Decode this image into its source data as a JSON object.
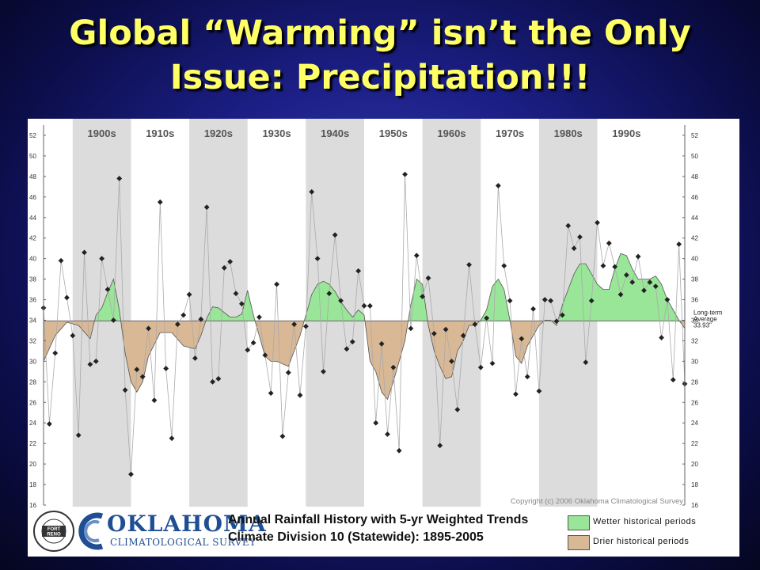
{
  "slide": {
    "title_line1": "Global “Warming” isn’t the Only",
    "title_line2": "Issue:  Precipitation!!!"
  },
  "footer": {
    "logo_left_text": "GRAZINGLANDS RESEARCH LAB",
    "logo_left_center": "FORT RENO",
    "org_name": "OKLAHOMA",
    "org_sub": "CLIMATOLOGICAL SURVEY",
    "chart_title": "Annual Rainfall History with 5-yr Weighted Trends",
    "chart_subtitle": "Climate Division 10 (Statewide): 1895-2005",
    "legend_wet": "Wetter historical periods",
    "legend_dry": "Drier historical periods"
  },
  "colors": {
    "wet": "#99e699",
    "dry": "#d9b896",
    "band": "#dcdcdc",
    "points": "#222222"
  },
  "chart_data": {
    "type": "line",
    "copyright": "Copyright  (c) 2006 Oklahoma Climatological Survey",
    "decades": [
      "1900s",
      "1910s",
      "1920s",
      "1930s",
      "1940s",
      "1950s",
      "1960s",
      "1970s",
      "1980s",
      "1990s"
    ],
    "ylim": [
      16,
      53
    ],
    "yticks": [
      16,
      18,
      20,
      22,
      24,
      26,
      28,
      30,
      32,
      34,
      36,
      38,
      40,
      42,
      44,
      46,
      48,
      50,
      52
    ],
    "xlim": [
      1895,
      2005
    ],
    "average": 33.93,
    "average_label": [
      "Long-term",
      "Average",
      "33.93\""
    ],
    "annual": {
      "x": [
        1895,
        1896,
        1897,
        1898,
        1899,
        1900,
        1901,
        1902,
        1903,
        1904,
        1905,
        1906,
        1907,
        1908,
        1909,
        1910,
        1911,
        1912,
        1913,
        1914,
        1915,
        1916,
        1917,
        1918,
        1919,
        1920,
        1921,
        1922,
        1923,
        1924,
        1925,
        1926,
        1927,
        1928,
        1929,
        1930,
        1931,
        1932,
        1933,
        1934,
        1935,
        1936,
        1937,
        1938,
        1939,
        1940,
        1941,
        1942,
        1943,
        1944,
        1945,
        1946,
        1947,
        1948,
        1949,
        1950,
        1951,
        1952,
        1953,
        1954,
        1955,
        1956,
        1957,
        1958,
        1959,
        1960,
        1961,
        1962,
        1963,
        1964,
        1965,
        1966,
        1967,
        1968,
        1969,
        1970,
        1971,
        1972,
        1973,
        1974,
        1975,
        1976,
        1977,
        1978,
        1979,
        1980,
        1981,
        1982,
        1983,
        1984,
        1985,
        1986,
        1987,
        1988,
        1989,
        1990,
        1991,
        1992,
        1993,
        1994,
        1995,
        1996,
        1997,
        1998,
        1999,
        2000,
        2001,
        2002,
        2003,
        2004,
        2005
      ],
      "y": [
        35.2,
        23.9,
        30.8,
        39.8,
        36.2,
        32.5,
        22.8,
        40.6,
        29.7,
        30.0,
        40.0,
        37.0,
        34.0,
        47.8,
        27.2,
        19.0,
        29.2,
        28.5,
        33.2,
        26.2,
        45.5,
        29.3,
        22.5,
        33.6,
        34.5,
        36.5,
        30.3,
        34.1,
        45.0,
        28.0,
        28.3,
        39.1,
        39.7,
        36.6,
        35.6,
        31.1,
        31.8,
        34.3,
        30.6,
        26.9,
        37.5,
        22.7,
        28.9,
        33.6,
        26.7,
        33.4,
        46.5,
        40.0,
        29.0,
        36.6,
        42.3,
        35.9,
        31.2,
        31.9,
        38.8,
        35.4,
        35.4,
        24.0,
        31.7,
        22.9,
        29.4,
        21.3,
        48.2,
        33.2,
        40.3,
        36.3,
        38.1,
        32.7,
        21.8,
        33.1,
        30.0,
        25.3,
        32.5,
        39.4,
        33.6,
        29.4,
        34.2,
        29.8,
        47.1,
        39.3,
        35.9,
        26.8,
        32.2,
        28.5,
        35.1,
        27.1,
        36.0,
        35.9,
        33.9,
        34.5,
        43.2,
        41.0,
        42.1,
        29.9,
        35.9,
        43.5,
        39.3,
        41.5,
        39.2,
        36.5,
        38.4,
        37.7,
        40.2,
        36.9,
        37.7,
        37.3,
        32.3,
        36.0,
        28.2,
        41.4,
        27.8
      ]
    },
    "trend": {
      "x": [
        1895,
        1897,
        1899,
        1901,
        1903,
        1904,
        1905,
        1906,
        1907,
        1908,
        1909,
        1910,
        1911,
        1912,
        1913,
        1915,
        1917,
        1919,
        1921,
        1922,
        1923,
        1924,
        1925,
        1927,
        1928,
        1929,
        1930,
        1931,
        1933,
        1934,
        1935,
        1937,
        1938,
        1939,
        1940,
        1941,
        1942,
        1943,
        1944,
        1945,
        1946,
        1947,
        1948,
        1949,
        1950,
        1951,
        1952,
        1953,
        1954,
        1955,
        1956,
        1957,
        1958,
        1959,
        1960,
        1961,
        1962,
        1963,
        1964,
        1965,
        1966,
        1967,
        1968,
        1969,
        1970,
        1971,
        1972,
        1973,
        1974,
        1975,
        1976,
        1977,
        1978,
        1979,
        1980,
        1981,
        1982,
        1983,
        1984,
        1985,
        1986,
        1987,
        1988,
        1989,
        1990,
        1991,
        1992,
        1993,
        1994,
        1995,
        1996,
        1997,
        1998,
        1999,
        2000,
        2001,
        2002,
        2003,
        2004,
        2005
      ],
      "y": [
        30.0,
        32.5,
        33.8,
        33.5,
        32.2,
        34.5,
        35.2,
        36.7,
        38.0,
        35.0,
        30.8,
        28.0,
        27.0,
        28.0,
        30.5,
        32.8,
        32.8,
        31.5,
        31.2,
        32.5,
        34.2,
        35.3,
        35.2,
        34.3,
        34.3,
        34.6,
        36.9,
        34.5,
        30.5,
        30.0,
        30.0,
        29.5,
        31.0,
        32.5,
        34.5,
        36.5,
        37.5,
        37.8,
        37.5,
        36.8,
        35.8,
        35.0,
        34.3,
        35.0,
        34.5,
        30.0,
        29.0,
        27.0,
        26.3,
        28.0,
        30.0,
        32.0,
        35.5,
        38.0,
        37.5,
        33.5,
        31.0,
        29.5,
        28.3,
        28.5,
        31.0,
        32.0,
        33.5,
        33.5,
        34.0,
        35.0,
        37.3,
        38.0,
        37.0,
        34.0,
        30.5,
        29.8,
        31.5,
        32.5,
        33.5,
        34.0,
        34.0,
        33.5,
        35.5,
        37.0,
        38.5,
        39.5,
        39.5,
        38.5,
        37.5,
        37.0,
        37.0,
        39.0,
        40.5,
        40.3,
        39.0,
        38.0,
        38.0,
        38.0,
        38.3,
        37.5,
        36.0,
        35.0,
        34.0,
        33.2
      ]
    }
  }
}
